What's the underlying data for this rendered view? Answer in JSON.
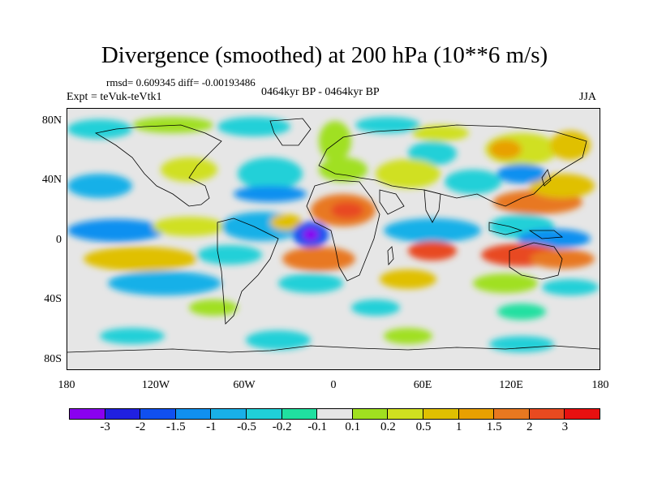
{
  "title": "Divergence (smoothed) at 200 hPa (10**6 m/s)",
  "stats": "rmsd= 0.609345 diff= -0.00193486",
  "period": "0464kyr BP - 0464kyr BP",
  "experiment": "Expt = teVuk-teVtk1",
  "season": "JJA",
  "y_ticks": [
    "80N",
    "40N",
    "0",
    "40S",
    "80S"
  ],
  "x_ticks": [
    "180",
    "120W",
    "60W",
    "0",
    "60E",
    "120E",
    "180"
  ],
  "colorbar": {
    "colors": [
      "#8a00f0",
      "#2020e0",
      "#1050f0",
      "#1090f0",
      "#19b0e8",
      "#20d0d8",
      "#20e0a0",
      "#e6e6e6",
      "#a0e020",
      "#d0e020",
      "#e0c000",
      "#e8a000",
      "#e87820",
      "#e84a20",
      "#e81010"
    ],
    "labels": [
      "-3",
      "-2",
      "-1.5",
      "-1",
      "-0.5",
      "-0.2",
      "-0.1",
      "0.1",
      "0.2",
      "0.5",
      "1",
      "1.5",
      "2",
      "3"
    ]
  }
}
